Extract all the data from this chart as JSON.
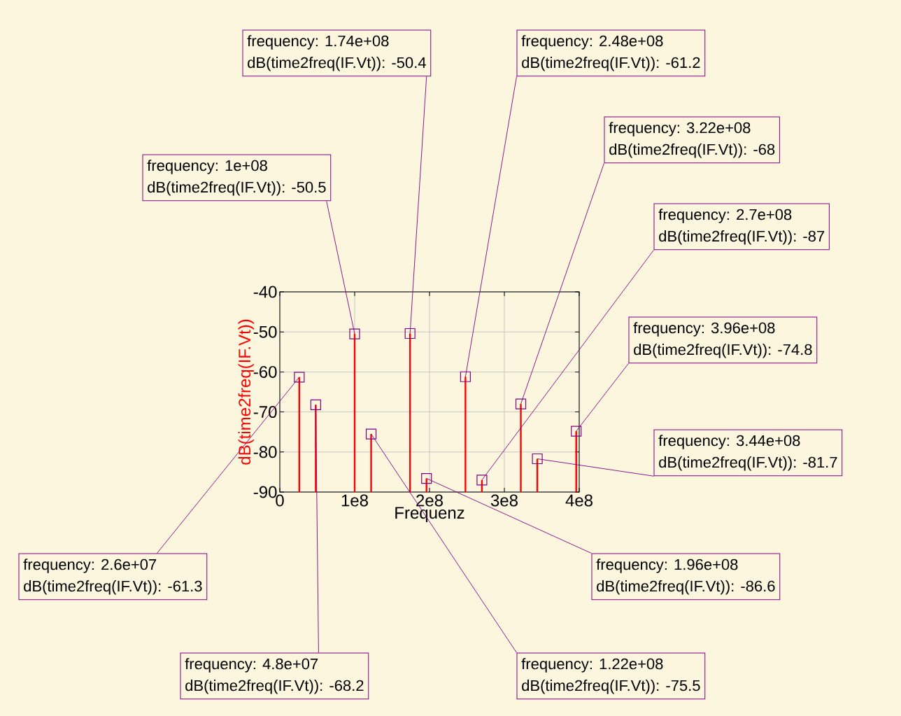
{
  "chart_data": {
    "type": "bar",
    "xlabel": "Frequenz",
    "ylabel": "dB(time2freq(IF.Vt))",
    "x": [
      26000000,
      48000000,
      100000000,
      122000000,
      174000000,
      196000000,
      248000000,
      270000000,
      322000000,
      344000000,
      396000000
    ],
    "series": [
      {
        "color": "#ff0000",
        "values": [
          28.7,
          21.8,
          39.5,
          14.5,
          39.6,
          3.4,
          28.8,
          3,
          22,
          8.3,
          15.2
        ],
        "base": [
          -90,
          -90,
          -90,
          -90,
          -90,
          -90,
          -90,
          -90,
          -90,
          -90,
          -90
        ]
      },
      {
        "type": "scatter",
        "color": "#800080",
        "marker": "square",
        "values": [
          -61.3,
          -68.2,
          -50.5,
          -75.5,
          -50.4,
          -86.6,
          -61.2,
          -87,
          -68,
          -81.7,
          -74.8
        ]
      }
    ],
    "grid": true,
    "xlim": [
      0,
      400000000
    ],
    "ylim": [
      -90,
      -40
    ],
    "xticks": [
      0,
      {
        "value": 100000000,
        "label": "1e8"
      },
      {
        "value": 200000000,
        "label": "2e8"
      },
      {
        "value": 300000000,
        "label": "3e8"
      },
      {
        "value": 400000000,
        "label": "4e8"
      }
    ],
    "yticks": [
      -90,
      -80,
      -70,
      -60,
      -50,
      -40
    ],
    "annotations": [
      {
        "text": "frequency: 2.6e+07",
        "x": 26000000,
        "y": -61.3
      },
      "dB(time2freq(IF.Vt)): -61.3",
      {
        "text": "frequency: 4.8e+07",
        "x": 48000000,
        "y": -68.2
      },
      "dB(time2freq(IF.Vt)): -68.2",
      "frequency: 1e+08",
      {
        "text": "dB(time2freq(IF.Vt)): -50.5",
        "x": 100000000,
        "y": -50.5
      },
      {
        "text": "frequency: 1.22e+08",
        "x": 122000000,
        "y": -75.5
      },
      "dB(time2freq(IF.Vt)): -75.5",
      "frequency: 1.74e+08",
      {
        "text": "dB(time2freq(IF.Vt)): -50.4",
        "x": 174000000,
        "y": -50.4
      },
      {
        "text": "frequency: 1.96e+08",
        "x": 196000000,
        "y": -86.6
      },
      "dB(time2freq(IF.Vt)): -86.6",
      "frequency: 2.48e+08",
      {
        "text": "dB(time2freq(IF.Vt)): -61.2",
        "x": 248000000,
        "y": -61.2
      },
      "frequency: 2.7e+08",
      {
        "text": "dB(time2freq(IF.Vt)): -87",
        "x": 270000000,
        "y": -87
      },
      "frequency: 3.22e+08",
      {
        "text": "dB(time2freq(IF.Vt)): -68",
        "x": 322000000,
        "y": -68
      },
      "frequency: 3.44e+08",
      {
        "text": "dB(time2freq(IF.Vt)): -81.7",
        "x": 344000000,
        "y": -81.7
      },
      "frequency: 3.96e+08",
      {
        "text": "dB(time2freq(IF.Vt)): -74.8",
        "x": 396000000,
        "y": -74.8
      }
    ]
  }
}
